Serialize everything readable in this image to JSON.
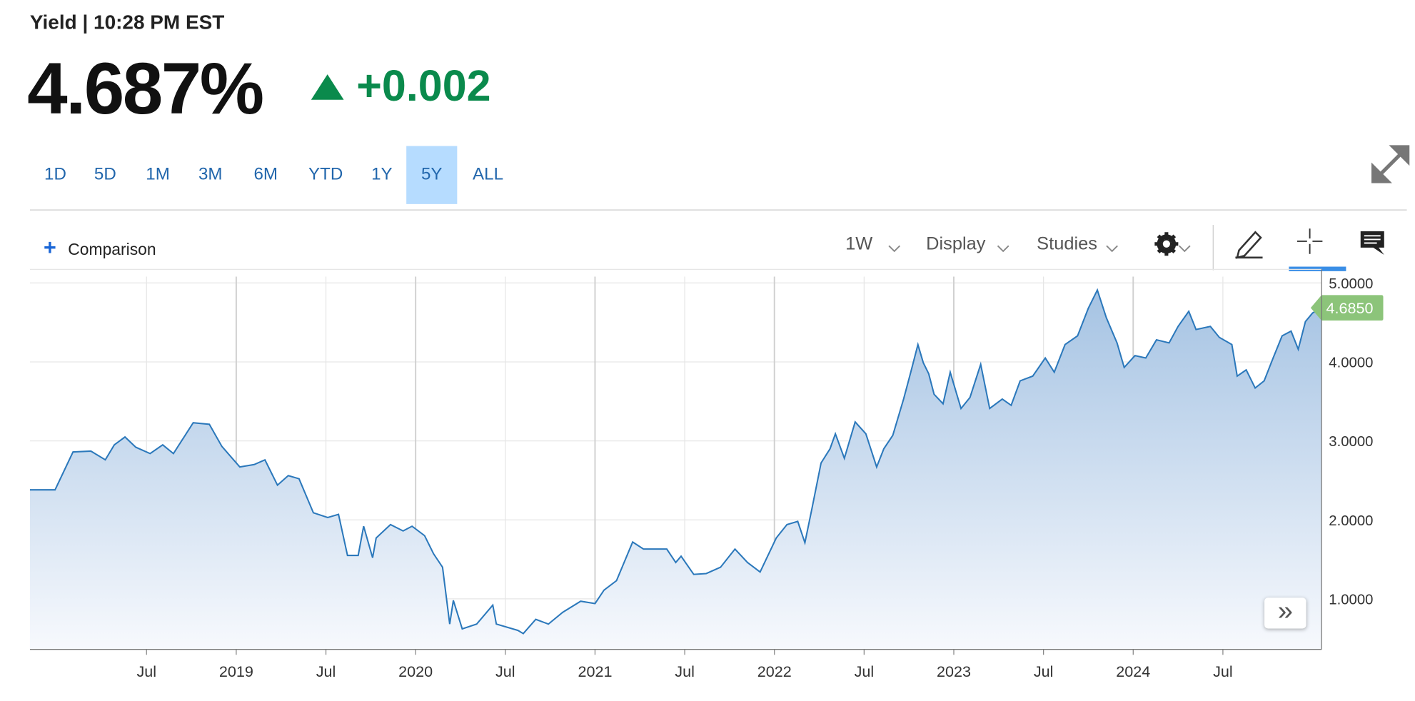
{
  "header": {
    "label": "Yield | 10:28 PM EST",
    "price": "4.687%",
    "change": "+0.002"
  },
  "ranges": {
    "items": [
      "1D",
      "5D",
      "1M",
      "3M",
      "6M",
      "YTD",
      "1Y",
      "5Y",
      "ALL"
    ],
    "selected": 7
  },
  "toolbar": {
    "comparison": "Comparison",
    "interval": "1W",
    "display": "Display",
    "studies": "Studies"
  },
  "chart_data": {
    "type": "area",
    "color": "#2b78bb",
    "grid": true,
    "x": [
      2017.85,
      2017.99,
      2018.09,
      2018.19,
      2018.27,
      2018.32,
      2018.38,
      2018.44,
      2018.52,
      2018.59,
      2018.65,
      2018.76,
      2018.85,
      2018.92,
      2019.02,
      2019.1,
      2019.16,
      2019.23,
      2019.29,
      2019.35,
      2019.43,
      2019.51,
      2019.57,
      2019.62,
      2019.68,
      2019.71,
      2019.76,
      2019.78,
      2019.86,
      2019.93,
      2019.98,
      2020.05,
      2020.1,
      2020.15,
      2020.19,
      2020.21,
      2020.26,
      2020.34,
      2020.43,
      2020.45,
      2020.57,
      2020.6,
      2020.67,
      2020.74,
      2020.82,
      2020.92,
      2021.0,
      2021.05,
      2021.12,
      2021.21,
      2021.27,
      2021.33,
      2021.4,
      2021.45,
      2021.48,
      2021.55,
      2021.62,
      2021.7,
      2021.78,
      2021.85,
      2021.92,
      2022.01,
      2022.07,
      2022.13,
      2022.17,
      2022.21,
      2022.26,
      2022.31,
      2022.34,
      2022.39,
      2022.45,
      2022.51,
      2022.57,
      2022.61,
      2022.66,
      2022.72,
      2022.76,
      2022.8,
      2022.83,
      2022.86,
      2022.89,
      2022.94,
      2022.98,
      2023.04,
      2023.09,
      2023.15,
      2023.2,
      2023.27,
      2023.32,
      2023.37,
      2023.44,
      2023.51,
      2023.56,
      2023.62,
      2023.69,
      2023.75,
      2023.8,
      2023.85,
      2023.91,
      2023.95,
      2024.01,
      2024.07,
      2024.13,
      2024.2,
      2024.25,
      2024.31,
      2024.35,
      2024.43,
      2024.48,
      2024.55,
      2024.58,
      2024.63,
      2024.68,
      2024.73,
      2024.78,
      2024.83,
      2024.88,
      2024.92,
      2024.96,
      2025.0,
      2025.05
    ],
    "values": [
      2.38,
      2.38,
      2.86,
      2.87,
      2.76,
      2.95,
      3.05,
      2.92,
      2.84,
      2.95,
      2.84,
      3.23,
      3.21,
      2.93,
      2.67,
      2.7,
      2.76,
      2.44,
      2.56,
      2.52,
      2.09,
      2.03,
      2.07,
      1.55,
      1.55,
      1.92,
      1.52,
      1.77,
      1.94,
      1.86,
      1.92,
      1.8,
      1.57,
      1.4,
      0.68,
      0.98,
      0.62,
      0.68,
      0.92,
      0.68,
      0.6,
      0.56,
      0.74,
      0.68,
      0.83,
      0.97,
      0.94,
      1.11,
      1.23,
      1.72,
      1.63,
      1.63,
      1.63,
      1.46,
      1.54,
      1.31,
      1.32,
      1.4,
      1.63,
      1.46,
      1.34,
      1.77,
      1.94,
      1.98,
      1.71,
      2.15,
      2.72,
      2.9,
      3.09,
      2.78,
      3.24,
      3.09,
      2.67,
      2.9,
      3.07,
      3.53,
      3.87,
      4.22,
      3.99,
      3.85,
      3.59,
      3.47,
      3.87,
      3.41,
      3.55,
      3.97,
      3.41,
      3.53,
      3.45,
      3.76,
      3.82,
      4.05,
      3.87,
      4.22,
      4.33,
      4.68,
      4.91,
      4.56,
      4.24,
      3.93,
      4.08,
      4.05,
      4.28,
      4.24,
      4.45,
      4.64,
      4.41,
      4.45,
      4.31,
      4.22,
      3.82,
      3.9,
      3.67,
      3.76,
      4.05,
      4.33,
      4.39,
      4.16,
      4.51,
      4.62,
      4.685
    ],
    "current_label": "4.6850",
    "xlim": [
      2017.85,
      2025.05
    ],
    "xticks": [
      {
        "value": 2018.5,
        "label": "Jul"
      },
      2019,
      {
        "value": 2019.5,
        "label": "Jul"
      },
      2020,
      {
        "value": 2020.5,
        "label": "Jul"
      },
      2021,
      {
        "value": 2021.5,
        "label": "Jul"
      },
      2022,
      {
        "value": 2022.5,
        "label": "Jul"
      },
      2023,
      {
        "value": 2023.5,
        "label": "Jul"
      },
      2024,
      {
        "value": 2024.5,
        "label": "Jul"
      }
    ],
    "ylim": [
      0.36,
      5.08
    ],
    "yticks": [
      {
        "value": 1,
        "label": "1.0000"
      },
      {
        "value": 2,
        "label": "2.0000"
      },
      {
        "value": 3,
        "label": "3.0000"
      },
      {
        "value": 4,
        "label": "4.0000"
      },
      {
        "value": 5,
        "label": "5.0000"
      }
    ]
  }
}
